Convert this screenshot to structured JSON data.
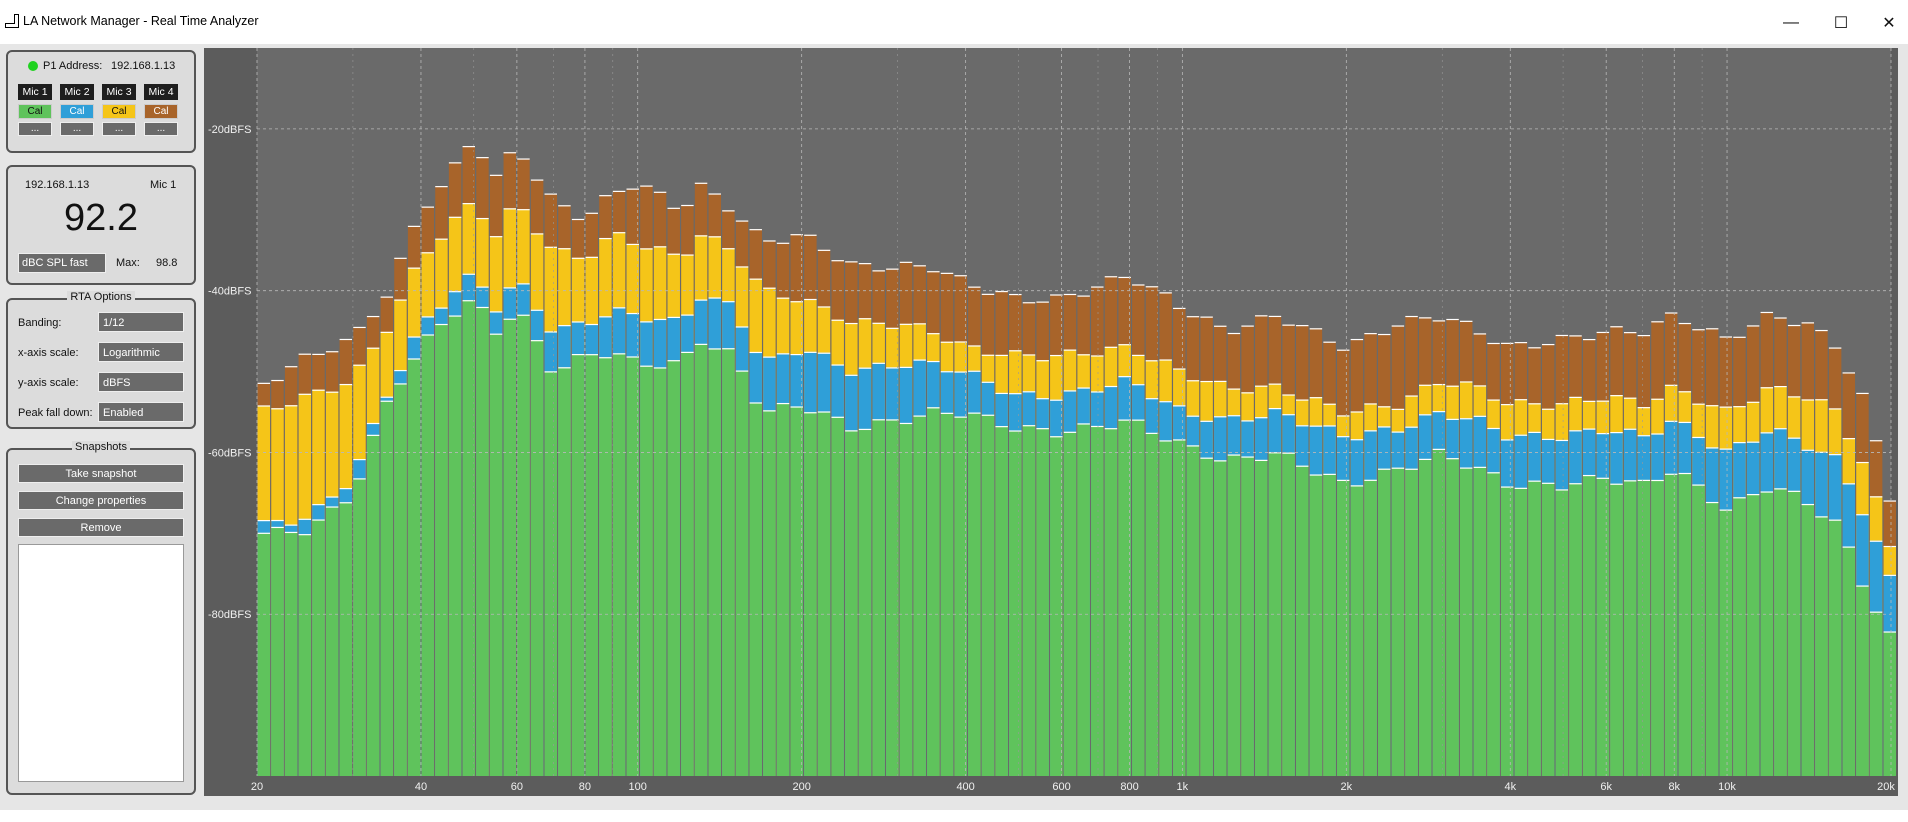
{
  "window": {
    "title": "LA Network Manager - Real Time Analyzer",
    "minimize": "—",
    "maximize": "☐",
    "close": "✕"
  },
  "device": {
    "p1_label": "P1 Address:",
    "p1_address": "192.168.1.13",
    "status_color": "#1fd21f",
    "mics": [
      {
        "label": "Mic 1",
        "cal": "Cal",
        "more": "...",
        "color": "#5fc35c"
      },
      {
        "label": "Mic 2",
        "cal": "Cal",
        "more": "...",
        "color": "#2f9fd8"
      },
      {
        "label": "Mic 3",
        "cal": "Cal",
        "more": "...",
        "color": "#f5c518"
      },
      {
        "label": "Mic 4",
        "cal": "Cal",
        "more": "...",
        "color": "#a8642a"
      }
    ]
  },
  "meter": {
    "address": "192.168.1.13",
    "mic": "Mic 1",
    "value": "92.2",
    "mode": "dBC SPL fast",
    "max_label": "Max:",
    "max_value": "98.8"
  },
  "rta_options": {
    "title": "RTA Options",
    "banding_label": "Banding:",
    "banding": "1/12",
    "xscale_label": "x-axis scale:",
    "xscale": "Logarithmic",
    "yscale_label": "y-axis scale:",
    "yscale": "dBFS",
    "peak_label": "Peak fall down:",
    "peak": "Enabled"
  },
  "snapshots": {
    "title": "Snapshots",
    "take": "Take snapshot",
    "change": "Change properties",
    "remove": "Remove"
  },
  "chart_data": {
    "type": "bar",
    "x_scale": "log",
    "xlim": [
      20,
      20000
    ],
    "ylim": [
      -100,
      -10
    ],
    "x_ticks": [
      {
        "v": 20,
        "label": "20"
      },
      {
        "v": 40,
        "label": "40"
      },
      {
        "v": 60,
        "label": "60"
      },
      {
        "v": 80,
        "label": "80"
      },
      {
        "v": 100,
        "label": "100"
      },
      {
        "v": 200,
        "label": "200"
      },
      {
        "v": 400,
        "label": "400"
      },
      {
        "v": 600,
        "label": "600"
      },
      {
        "v": 800,
        "label": "800"
      },
      {
        "v": 1000,
        "label": "1k"
      },
      {
        "v": 2000,
        "label": "2k"
      },
      {
        "v": 4000,
        "label": "4k"
      },
      {
        "v": 6000,
        "label": "6k"
      },
      {
        "v": 8000,
        "label": "8k"
      },
      {
        "v": 10000,
        "label": "10k"
      },
      {
        "v": 20000,
        "label": "20k"
      }
    ],
    "y_ticks": [
      {
        "v": -20,
        "label": "-20dBFS"
      },
      {
        "v": -40,
        "label": "-40dBFS"
      },
      {
        "v": -60,
        "label": "-60dBFS"
      },
      {
        "v": -80,
        "label": "-80dBFS"
      }
    ],
    "grid": true,
    "series": [
      {
        "name": "Mic 1",
        "color": "#5fc35c",
        "anchors": [
          [
            20,
            -70
          ],
          [
            25,
            -69.5
          ],
          [
            30,
            -65
          ],
          [
            35,
            -53
          ],
          [
            40,
            -47
          ],
          [
            45,
            -43
          ],
          [
            50,
            -41
          ],
          [
            55,
            -45
          ],
          [
            60,
            -42
          ],
          [
            70,
            -50
          ],
          [
            80,
            -48
          ],
          [
            90,
            -47.5
          ],
          [
            100,
            -49
          ],
          [
            120,
            -49
          ],
          [
            130,
            -46
          ],
          [
            150,
            -48
          ],
          [
            170,
            -55
          ],
          [
            200,
            -54
          ],
          [
            250,
            -57
          ],
          [
            300,
            -56
          ],
          [
            350,
            -55
          ],
          [
            400,
            -55
          ],
          [
            500,
            -57
          ],
          [
            600,
            -57.5
          ],
          [
            800,
            -56
          ],
          [
            1000,
            -59
          ],
          [
            1200,
            -61
          ],
          [
            1500,
            -60
          ],
          [
            2000,
            -64
          ],
          [
            2500,
            -62
          ],
          [
            3000,
            -60
          ],
          [
            3500,
            -62
          ],
          [
            4000,
            -64
          ],
          [
            5000,
            -64
          ],
          [
            6000,
            -63
          ],
          [
            7000,
            -64
          ],
          [
            8000,
            -62
          ],
          [
            10000,
            -67
          ],
          [
            12000,
            -64
          ],
          [
            14000,
            -66
          ],
          [
            16000,
            -69
          ],
          [
            18000,
            -77
          ],
          [
            20000,
            -83
          ]
        ]
      },
      {
        "name": "Mic 2",
        "color": "#2f9fd8",
        "anchors": [
          [
            20,
            -69
          ],
          [
            25,
            -68
          ],
          [
            30,
            -63
          ],
          [
            35,
            -52
          ],
          [
            40,
            -44.5
          ],
          [
            45,
            -40.5
          ],
          [
            50,
            -38
          ],
          [
            55,
            -42
          ],
          [
            60,
            -38.5
          ],
          [
            70,
            -45
          ],
          [
            80,
            -44
          ],
          [
            90,
            -42.5
          ],
          [
            100,
            -43
          ],
          [
            120,
            -44
          ],
          [
            130,
            -40.5
          ],
          [
            150,
            -42
          ],
          [
            170,
            -49
          ],
          [
            200,
            -47
          ],
          [
            250,
            -50
          ],
          [
            300,
            -49
          ],
          [
            350,
            -49
          ],
          [
            400,
            -50
          ],
          [
            500,
            -53
          ],
          [
            600,
            -53
          ],
          [
            800,
            -51
          ],
          [
            1000,
            -55
          ],
          [
            1200,
            -56
          ],
          [
            1500,
            -55
          ],
          [
            2000,
            -58
          ],
          [
            2500,
            -57
          ],
          [
            3000,
            -55
          ],
          [
            3500,
            -56
          ],
          [
            4000,
            -58
          ],
          [
            5000,
            -58
          ],
          [
            6000,
            -57
          ],
          [
            7000,
            -58
          ],
          [
            8000,
            -56
          ],
          [
            10000,
            -60
          ],
          [
            12000,
            -57
          ],
          [
            14000,
            -59
          ],
          [
            16000,
            -61
          ],
          [
            18000,
            -68
          ],
          [
            20000,
            -76
          ]
        ]
      },
      {
        "name": "Mic 3",
        "color": "#f5c518",
        "anchors": [
          [
            20,
            -55
          ],
          [
            25,
            -53
          ],
          [
            30,
            -51
          ],
          [
            35,
            -44
          ],
          [
            40,
            -36
          ],
          [
            45,
            -32
          ],
          [
            50,
            -29
          ],
          [
            55,
            -33
          ],
          [
            60,
            -29
          ],
          [
            70,
            -35
          ],
          [
            80,
            -36
          ],
          [
            90,
            -33
          ],
          [
            100,
            -34
          ],
          [
            120,
            -36
          ],
          [
            130,
            -33
          ],
          [
            150,
            -35
          ],
          [
            170,
            -40
          ],
          [
            200,
            -41
          ],
          [
            250,
            -44
          ],
          [
            300,
            -44
          ],
          [
            350,
            -45
          ],
          [
            400,
            -47
          ],
          [
            500,
            -48
          ],
          [
            600,
            -48
          ],
          [
            800,
            -47
          ],
          [
            1000,
            -50
          ],
          [
            1200,
            -52
          ],
          [
            1500,
            -52
          ],
          [
            2000,
            -55
          ],
          [
            2500,
            -54
          ],
          [
            3000,
            -51
          ],
          [
            3500,
            -52
          ],
          [
            4000,
            -54
          ],
          [
            5000,
            -54
          ],
          [
            6000,
            -53
          ],
          [
            7000,
            -54
          ],
          [
            8000,
            -52
          ],
          [
            10000,
            -55
          ],
          [
            12000,
            -52
          ],
          [
            14000,
            -53
          ],
          [
            16000,
            -55
          ],
          [
            18000,
            -62
          ],
          [
            20000,
            -72
          ]
        ]
      },
      {
        "name": "Mic 4",
        "color": "#a8642a",
        "anchors": [
          [
            20,
            -52
          ],
          [
            25,
            -48
          ],
          [
            30,
            -46
          ],
          [
            35,
            -40
          ],
          [
            40,
            -30
          ],
          [
            45,
            -26
          ],
          [
            50,
            -21
          ],
          [
            55,
            -26
          ],
          [
            60,
            -22
          ],
          [
            70,
            -29
          ],
          [
            80,
            -31
          ],
          [
            90,
            -28
          ],
          [
            100,
            -26.5
          ],
          [
            120,
            -30
          ],
          [
            130,
            -27
          ],
          [
            150,
            -30
          ],
          [
            170,
            -34
          ],
          [
            200,
            -33
          ],
          [
            250,
            -37
          ],
          [
            300,
            -37
          ],
          [
            350,
            -37
          ],
          [
            400,
            -39
          ],
          [
            500,
            -41
          ],
          [
            600,
            -41
          ],
          [
            800,
            -38
          ],
          [
            1000,
            -42
          ],
          [
            1200,
            -45
          ],
          [
            1500,
            -43
          ],
          [
            2000,
            -47
          ],
          [
            2500,
            -44
          ],
          [
            3000,
            -43
          ],
          [
            3500,
            -45
          ],
          [
            4000,
            -47
          ],
          [
            5000,
            -46
          ],
          [
            6000,
            -45
          ],
          [
            7000,
            -45
          ],
          [
            8000,
            -43
          ],
          [
            10000,
            -46
          ],
          [
            12000,
            -43
          ],
          [
            14000,
            -44
          ],
          [
            16000,
            -47
          ],
          [
            18000,
            -54
          ],
          [
            20000,
            -66
          ]
        ]
      }
    ]
  }
}
